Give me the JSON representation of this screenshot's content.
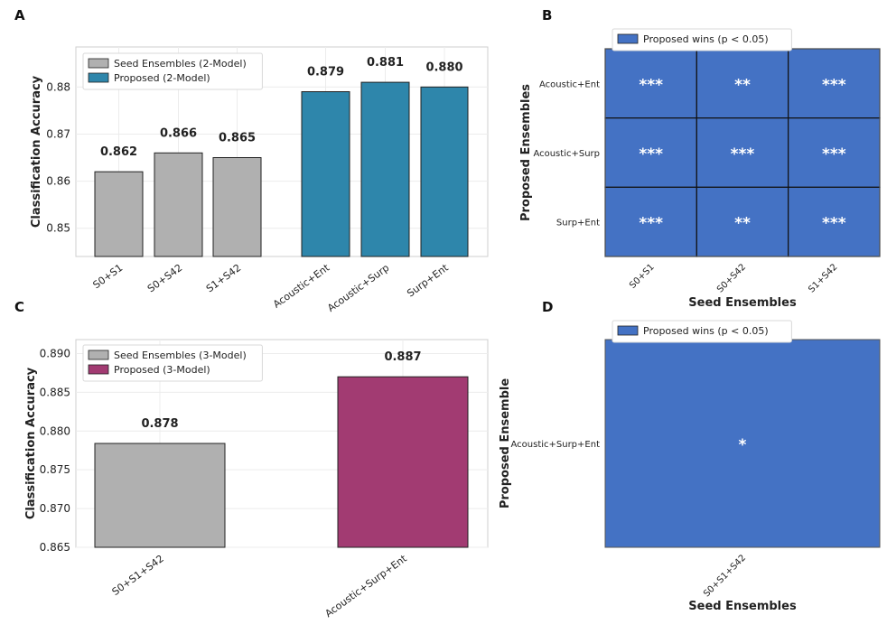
{
  "chart_data": [
    {
      "panel": "A",
      "type": "bar",
      "ylabel": "Classification Accuracy",
      "ylim": [
        0.844,
        0.8885
      ],
      "yticks": [
        0.85,
        0.86,
        0.87,
        0.88
      ],
      "ytick_labels": [
        "0.85",
        "0.86",
        "0.87",
        "0.88"
      ],
      "grid": true,
      "legend_position": "top-left",
      "series": [
        {
          "name": "Seed Ensembles (2-Model)",
          "color": "#b0b0b0",
          "categories": [
            "S0+S1",
            "S0+S42",
            "S1+S42"
          ],
          "values": [
            0.862,
            0.866,
            0.865
          ],
          "labels": [
            "0.862",
            "0.866",
            "0.865"
          ]
        },
        {
          "name": "Proposed (2-Model)",
          "color": "#2e86ab",
          "categories": [
            "Acoustic+Ent",
            "Acoustic+Surp",
            "Surp+Ent"
          ],
          "values": [
            0.879,
            0.881,
            0.88
          ],
          "labels": [
            "0.879",
            "0.881",
            "0.880"
          ]
        }
      ]
    },
    {
      "panel": "B",
      "type": "heatmap",
      "xlabel": "Seed Ensembles",
      "ylabel": "Proposed Ensembles",
      "x_categories": [
        "S0+S1",
        "S0+S42",
        "S1+S42"
      ],
      "y_categories": [
        "Acoustic+Ent",
        "Acoustic+Surp",
        "Surp+Ent"
      ],
      "cells": [
        [
          "***",
          "**",
          "***"
        ],
        [
          "***",
          "***",
          "***"
        ],
        [
          "***",
          "**",
          "***"
        ]
      ],
      "cell_color": "#4472c4",
      "legend": "Proposed wins (p < 0.05)",
      "legend_position": "top-left"
    },
    {
      "panel": "C",
      "type": "bar",
      "ylabel": "Classification Accuracy",
      "ylim": [
        0.865,
        0.8918
      ],
      "yticks": [
        0.865,
        0.87,
        0.875,
        0.88,
        0.885,
        0.89
      ],
      "ytick_labels": [
        "0.865",
        "0.870",
        "0.875",
        "0.880",
        "0.885",
        "0.890"
      ],
      "grid": true,
      "legend_position": "top-left",
      "series": [
        {
          "name": "Seed Ensembles (3-Model)",
          "color": "#b0b0b0",
          "categories": [
            "S0+S1+S42"
          ],
          "values": [
            0.8784
          ],
          "labels": [
            "0.878"
          ]
        },
        {
          "name": "Proposed (3-Model)",
          "color": "#a23b72",
          "categories": [
            "Acoustic+Surp+Ent"
          ],
          "values": [
            0.887
          ],
          "labels": [
            "0.887"
          ]
        }
      ]
    },
    {
      "panel": "D",
      "type": "heatmap",
      "xlabel": "Seed Ensembles",
      "ylabel": "Proposed Ensemble",
      "x_categories": [
        "S0+S1+S42"
      ],
      "y_categories": [
        "Acoustic+Surp+Ent"
      ],
      "cells": [
        [
          "*"
        ]
      ],
      "cell_color": "#4472c4",
      "legend": "Proposed wins (p < 0.05)",
      "legend_position": "top-left"
    }
  ]
}
